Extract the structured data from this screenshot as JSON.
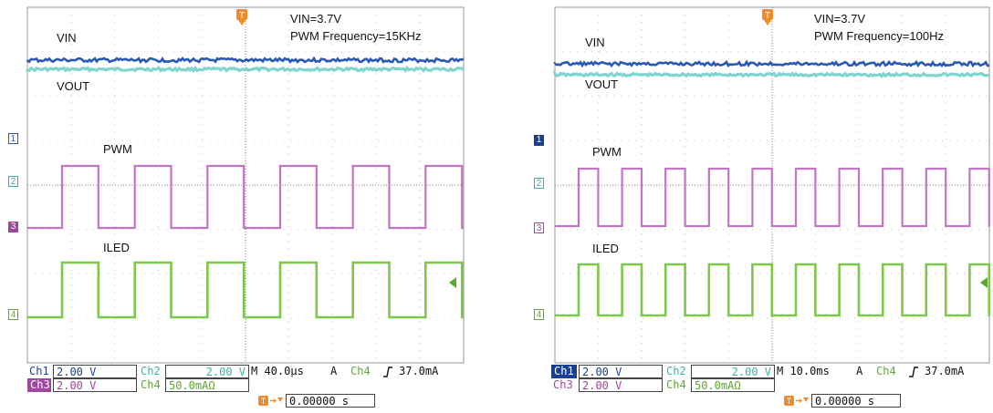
{
  "chart_data": [
    {
      "type": "line",
      "title": "",
      "annotations": [
        "VIN=3.7V",
        "PWM Frequency=15KHz"
      ],
      "series": [
        {
          "name": "VIN",
          "channel": 1,
          "color": "#2a58b6"
        },
        {
          "name": "VOUT",
          "channel": 2,
          "color": "#7fd4d0"
        },
        {
          "name": "PWM",
          "channel": 3,
          "color": "#c474c4",
          "pulse_periods_visible": 6
        },
        {
          "name": "ILED",
          "channel": 4,
          "color": "#7dc84a",
          "pulse_periods_visible": 6
        }
      ],
      "channel_markers": [
        "1",
        "2",
        "3",
        "4"
      ],
      "readout": {
        "ch1_label": "Ch1",
        "ch1_value": "2.00 V",
        "ch2_label": "Ch2",
        "ch2_value": "2.00 V",
        "timebase": "M 40.0µs",
        "trigger_mode": "A",
        "trigger_channel": "Ch4",
        "trigger_level": "37.0mA",
        "ch3_label": "Ch3",
        "ch3_value": "2.00 V",
        "ch4_label": "Ch4",
        "ch4_value": "50.0mAΩ",
        "trigger_position": "0.00000 s"
      }
    },
    {
      "type": "line",
      "title": "",
      "annotations": [
        "VIN=3.7V",
        "PWM Frequency=100Hz"
      ],
      "series": [
        {
          "name": "VIN",
          "channel": 1,
          "color": "#2a58b6"
        },
        {
          "name": "VOUT",
          "channel": 2,
          "color": "#7fd4d0"
        },
        {
          "name": "PWM",
          "channel": 3,
          "color": "#c474c4",
          "pulse_periods_visible": 10
        },
        {
          "name": "ILED",
          "channel": 4,
          "color": "#7dc84a",
          "pulse_periods_visible": 10
        }
      ],
      "channel_markers": [
        "1",
        "2",
        "3",
        "4"
      ],
      "readout": {
        "ch1_label": "Ch1",
        "ch1_value": "2.00 V",
        "ch2_label": "Ch2",
        "ch2_value": "2.00 V",
        "timebase": "M 10.0ms",
        "trigger_mode": "A",
        "trigger_channel": "Ch4",
        "trigger_level": "37.0mA",
        "ch3_label": "Ch3",
        "ch3_value": "2.00 V",
        "ch4_label": "Ch4",
        "ch4_value": "50.0mAΩ",
        "trigger_position": "0.00000 s"
      }
    }
  ]
}
